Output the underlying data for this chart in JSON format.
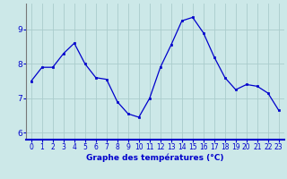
{
  "hours": [
    0,
    1,
    2,
    3,
    4,
    5,
    6,
    7,
    8,
    9,
    10,
    11,
    12,
    13,
    14,
    15,
    16,
    17,
    18,
    19,
    20,
    21,
    22,
    23
  ],
  "temps": [
    7.5,
    7.9,
    7.9,
    8.3,
    8.6,
    8.0,
    7.6,
    7.55,
    6.9,
    6.55,
    6.45,
    7.0,
    7.9,
    8.55,
    9.25,
    9.35,
    8.9,
    8.2,
    7.6,
    7.25,
    7.4,
    7.35,
    7.15,
    6.65
  ],
  "line_color": "#0000cc",
  "marker": "s",
  "marker_size": 2.0,
  "background_color": "#cce8e8",
  "grid_color": "#aacccc",
  "xlabel": "Graphe des températures (°C)",
  "ylim": [
    5.8,
    9.75
  ],
  "xlim": [
    -0.5,
    23.5
  ],
  "yticks": [
    6,
    7,
    8,
    9
  ],
  "xticks": [
    0,
    1,
    2,
    3,
    4,
    5,
    6,
    7,
    8,
    9,
    10,
    11,
    12,
    13,
    14,
    15,
    16,
    17,
    18,
    19,
    20,
    21,
    22,
    23
  ],
  "tick_color": "#0000cc",
  "label_color": "#0000cc",
  "axis_bottom_color": "#0000cc",
  "tick_fontsize": 5.5,
  "xlabel_fontsize": 6.5
}
